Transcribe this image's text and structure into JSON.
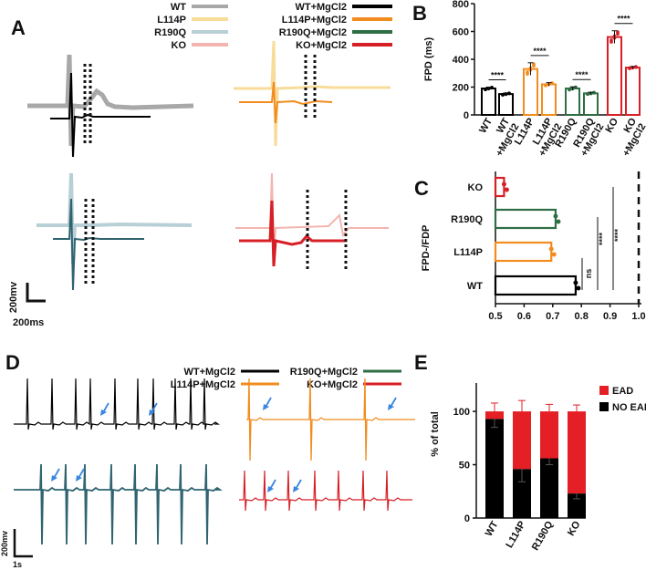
{
  "panels": {
    "a": "A",
    "b": "B",
    "c": "C",
    "d": "D",
    "e": "E"
  },
  "colors": {
    "wt": "#000000",
    "wt_light": "#a8a8a8",
    "l114p": "#f28c1f",
    "l114p_light": "#f7dc9a",
    "r190q": "#2e6e44",
    "r190q_light": "#b8cfd6",
    "r190q_trace": "#2f6470",
    "ko": "#d71f26",
    "ko_light": "#f4b5b0",
    "ead": "#e41f25",
    "noead": "#000000",
    "arrow": "#3a86e0"
  },
  "panel_a": {
    "legend_left": [
      "WT",
      "L114P",
      "R190Q",
      "KO"
    ],
    "legend_right": [
      "WT+MgCl2",
      "L114P+MgCl2",
      "R190Q+MgCl2",
      "KO+MgCl2"
    ],
    "scale_y": "200mv",
    "scale_x": "200ms"
  },
  "panel_d": {
    "legend": [
      "WT+MgCl2",
      "L114P+MgCl2",
      "R190Q+MgCl2",
      "KO+MgCl2"
    ],
    "scale_y": "200mv",
    "scale_x": "1s"
  },
  "chart_data": [
    {
      "id": "B",
      "type": "bar",
      "ylabel": "FPD (ms)",
      "ylim": [
        0,
        800
      ],
      "yticks": [
        0,
        200,
        400,
        600,
        800
      ],
      "categories": [
        "WT",
        "WT +MgCl2",
        "L114P",
        "L114P +MgCl2",
        "R190Q",
        "R190Q +MgCl2",
        "KO",
        "KO +MgCl2"
      ],
      "values": [
        190,
        150,
        330,
        220,
        190,
        155,
        560,
        340
      ],
      "errors": [
        10,
        8,
        45,
        12,
        12,
        8,
        45,
        8
      ],
      "significance": [
        "****",
        "****",
        "****",
        "****"
      ]
    },
    {
      "id": "C",
      "type": "bar",
      "orientation": "horizontal",
      "ylabel": "FPD-/FDP",
      "categories": [
        "KO",
        "R190Q",
        "L114P",
        "WT"
      ],
      "values": [
        0.53,
        0.71,
        0.695,
        0.78
      ],
      "xlim": [
        0.5,
        1.0
      ],
      "xticks": [
        "0.5",
        "0.6",
        "0.7",
        "0.8",
        "0.9",
        "1.0"
      ],
      "reference_line": 1.0,
      "significance": [
        "ns",
        "****",
        "****"
      ]
    },
    {
      "id": "E",
      "type": "bar",
      "stacked": true,
      "ylabel": "% of total",
      "ylim": [
        0,
        100
      ],
      "yticks": [
        0,
        50,
        100
      ],
      "categories": [
        "WT",
        "L114P",
        "R190Q",
        "KO"
      ],
      "series": [
        {
          "name": "NO EAD",
          "values": [
            93,
            46,
            56,
            23
          ]
        },
        {
          "name": "EAD",
          "values": [
            7,
            54,
            44,
            77
          ]
        }
      ],
      "legend": [
        "EAD",
        "NO EAD"
      ]
    }
  ]
}
